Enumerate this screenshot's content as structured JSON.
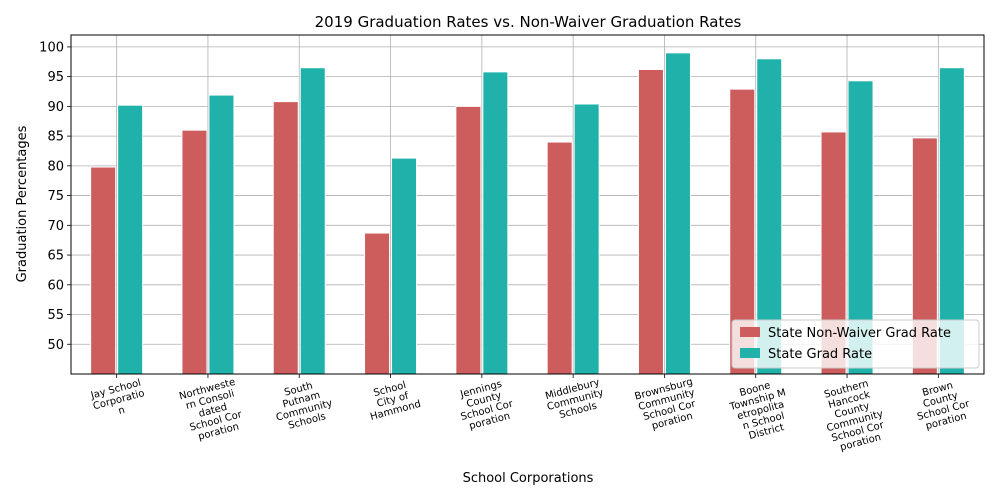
{
  "chart_data": {
    "type": "bar",
    "title": "2019 Graduation Rates vs. Non-Waiver Graduation Rates",
    "xlabel": "School Corporations",
    "ylabel": "Graduation Percentages",
    "ylim": [
      45,
      102
    ],
    "yticks": [
      50,
      55,
      60,
      65,
      70,
      75,
      80,
      85,
      90,
      95,
      100
    ],
    "grid": true,
    "legend_position": "lower-right",
    "categories": [
      "Jay School Corporation",
      "Northwestern Consolidated School Corporation",
      "South Putnam Community Schools",
      "School City of Hammond",
      "Jennings County School Corporation",
      "Middlebury Community Schools",
      "Brownsburg Community School Corporation",
      "Boone Township Metropolitan School District",
      "Southern Hancock County Community School Corporation",
      "Brown County School Corporation"
    ],
    "category_label_lines": [
      [
        "Jay School",
        "Corporatio",
        "n"
      ],
      [
        "Northweste",
        "rn Consoli",
        "dated",
        "School Cor",
        "poration"
      ],
      [
        "South",
        "Putnam",
        "Community",
        "Schools"
      ],
      [
        "School",
        "City of",
        "Hammond"
      ],
      [
        "Jennings",
        "County",
        "School Cor",
        "poration"
      ],
      [
        "Middlebury",
        "Community",
        "Schools"
      ],
      [
        "Brownsburg",
        "Community",
        "School Cor",
        "poration"
      ],
      [
        "Boone",
        "Township M",
        "etropolita",
        "n School",
        "District"
      ],
      [
        "Southern",
        "Hancock",
        "County",
        "Community",
        "School Cor",
        "poration"
      ],
      [
        "Brown",
        "County",
        "School Cor",
        "poration"
      ]
    ],
    "series": [
      {
        "name": "State Non-Waiver Grad Rate",
        "color": "#cd5c5c",
        "values": [
          79.8,
          86.0,
          90.8,
          68.7,
          90.0,
          84.0,
          96.2,
          92.9,
          85.7,
          84.7
        ]
      },
      {
        "name": "State Grad Rate",
        "color": "#20b2aa",
        "values": [
          90.2,
          91.9,
          96.5,
          81.3,
          95.8,
          90.4,
          99.0,
          98.0,
          94.3,
          96.5
        ]
      }
    ]
  }
}
